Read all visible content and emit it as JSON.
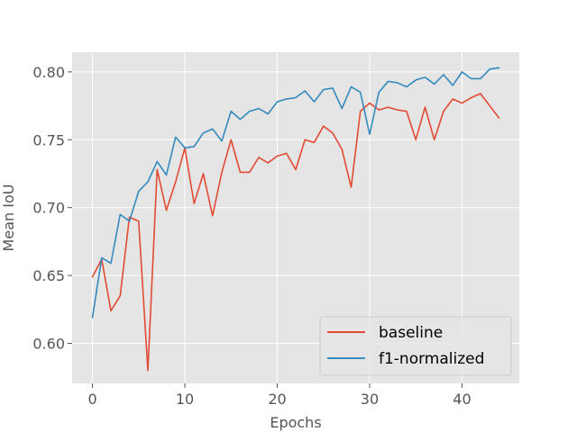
{
  "chart_data": {
    "type": "line",
    "xlabel": "Epochs",
    "ylabel": "Mean IoU",
    "xlim": [
      -2.2,
      46.2
    ],
    "ylim": [
      0.5705,
      0.8145
    ],
    "xticks": [
      0,
      10,
      20,
      30,
      40
    ],
    "yticks": [
      0.6,
      0.65,
      0.7,
      0.75,
      0.8
    ],
    "ytick_labels": [
      "0.60",
      "0.65",
      "0.70",
      "0.75",
      "0.80"
    ],
    "grid": true,
    "legend_position": "lower-right",
    "x": [
      0,
      1,
      2,
      3,
      4,
      5,
      6,
      7,
      8,
      9,
      10,
      11,
      12,
      13,
      14,
      15,
      16,
      17,
      18,
      19,
      20,
      21,
      22,
      23,
      24,
      25,
      26,
      27,
      28,
      29,
      30,
      31,
      32,
      33,
      34,
      35,
      36,
      37,
      38,
      39,
      40,
      41,
      42,
      43,
      44
    ],
    "series": [
      {
        "name": "baseline",
        "color": "#e24a33",
        "values": [
          0.649,
          0.662,
          0.624,
          0.635,
          0.693,
          0.69,
          0.58,
          0.728,
          0.698,
          0.719,
          0.744,
          0.703,
          0.725,
          0.694,
          0.726,
          0.75,
          0.726,
          0.726,
          0.737,
          0.733,
          0.738,
          0.74,
          0.728,
          0.75,
          0.748,
          0.76,
          0.755,
          0.743,
          0.715,
          0.771,
          0.777,
          0.772,
          0.774,
          0.772,
          0.771,
          0.75,
          0.774,
          0.75,
          0.771,
          0.78,
          0.777,
          0.781,
          0.784,
          0.775,
          0.766
        ]
      },
      {
        "name": "f1-normalized",
        "color": "#348abd",
        "values": [
          0.619,
          0.663,
          0.659,
          0.695,
          0.69,
          0.712,
          0.719,
          0.734,
          0.724,
          0.752,
          0.744,
          0.745,
          0.755,
          0.758,
          0.749,
          0.771,
          0.765,
          0.771,
          0.773,
          0.769,
          0.778,
          0.78,
          0.781,
          0.786,
          0.778,
          0.787,
          0.788,
          0.773,
          0.789,
          0.785,
          0.754,
          0.785,
          0.793,
          0.792,
          0.789,
          0.794,
          0.796,
          0.791,
          0.798,
          0.79,
          0.8,
          0.795,
          0.795,
          0.802,
          0.803
        ]
      }
    ]
  }
}
